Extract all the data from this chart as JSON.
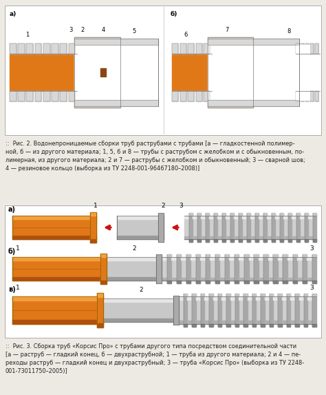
{
  "bg_color": "#ede9e3",
  "fig_width": 4.74,
  "fig_height": 5.73,
  "dpi": 100,
  "orange": "#e07818",
  "orange_hi": "#f0a040",
  "orange_lo": "#b05010",
  "gray_wall": "#b0b0b0",
  "gray_hi": "#d8d8d8",
  "gray_lo": "#888888",
  "gray_mid": "#c0c0c0",
  "white": "#ffffff",
  "red_arrow": "#cc1111",
  "caption_color": "#222222",
  "border_color": "#aaaaaa",
  "caption1_parts": [
    [
      "::  ",
      false
    ],
    [
      "Рис. 2.",
      true
    ],
    [
      " Водонепроницаемые сборки труб раструбами с трубами [",
      false
    ],
    [
      "а",
      true
    ],
    [
      " — гладкостенной полимер-\nной, ",
      false
    ],
    [
      "б",
      true
    ],
    [
      " — из другого материала; ",
      false
    ],
    [
      "1, 5, 6 и 8",
      true
    ],
    [
      " — трубы с раструбом с желобком и с обыкновенным, по-\nлимерная, из другого материала; ",
      false
    ],
    [
      "2 и 7",
      true
    ],
    [
      " — раструбы с желобком и обыкновенный; ",
      false
    ],
    [
      "3",
      true
    ],
    [
      " — сварной шов;\n",
      false
    ],
    [
      "4",
      true
    ],
    [
      " — резиновое кольцо (выборка из ТУ 2248-001-96467180–2008)]",
      false
    ]
  ],
  "caption2_parts": [
    [
      "::  ",
      false
    ],
    [
      "Рис. 3.",
      true
    ],
    [
      " Сборка труб «Корсис Про» с трубами другого типа посредством соединительной части\n[",
      false
    ],
    [
      "а",
      true
    ],
    [
      " — раструб — гладкий конец, ",
      false
    ],
    [
      "б",
      true
    ],
    [
      " — двухраструбной; ",
      false
    ],
    [
      "1",
      true
    ],
    [
      " — труба из другого материала; ",
      false
    ],
    [
      "2 и 4",
      true
    ],
    [
      " — пе-\nреходы раструб — гладкий конец и двухраструбный; ",
      false
    ],
    [
      "3",
      true
    ],
    [
      " — труба «Корсис Про» (выборка из ТУ 2248-\n001-73011750–2005)]",
      false
    ]
  ]
}
